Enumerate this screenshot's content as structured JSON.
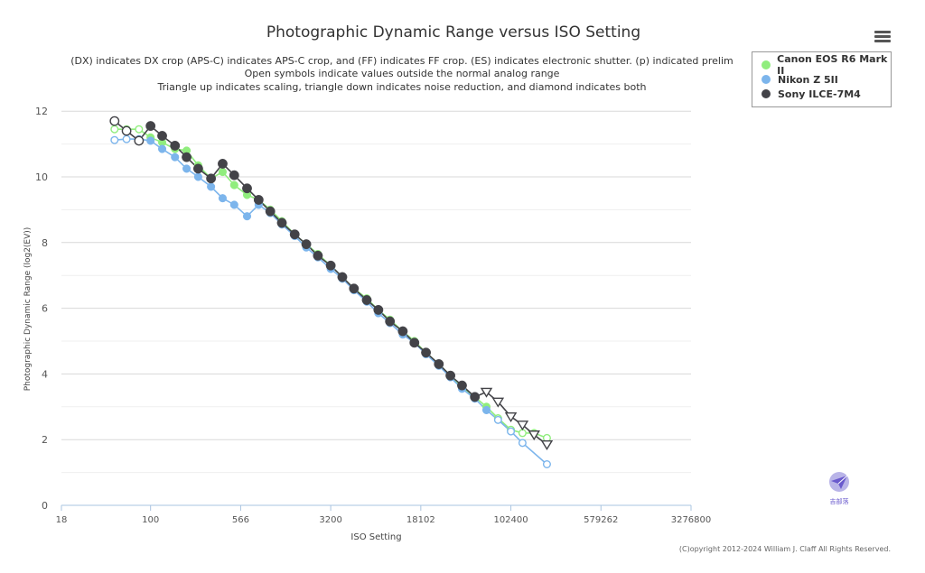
{
  "chart_data": {
    "type": "line",
    "title": "Photographic Dynamic Range versus ISO Setting",
    "subtitle": [
      "(DX) indicates DX crop (APS-C) indicates APS-C crop, and (FF) indicates FF crop. (ES) indicates electronic shutter. (p) indicated prelim",
      "Open symbols indicate values outside the normal analog range",
      "Triangle up indicates scaling, triangle down indicates noise reduction, and diamond indicates both"
    ],
    "xlabel": "ISO Setting",
    "ylabel": "Photographic Dynamic Range (log2(EV))",
    "x_scale": "log2",
    "xlim": [
      18,
      3276800
    ],
    "ylim": [
      0,
      12.5
    ],
    "x_ticks": [
      18,
      100,
      566,
      3200,
      18102,
      102400,
      579262,
      3276800
    ],
    "x_tick_labels": [
      "18",
      "100",
      "566",
      "3200",
      "18102",
      "102400",
      "579262",
      "3276800"
    ],
    "y_ticks": [
      0,
      2,
      4,
      6,
      8,
      10,
      12
    ],
    "y_tick_labels": [
      "0",
      "2",
      "4",
      "6",
      "8",
      "10",
      "12"
    ],
    "grid": "horizontal",
    "legend_position": "top-right",
    "series": [
      {
        "name": "Canon EOS R6 Mark II",
        "color": "#90ed7d",
        "points": [
          [
            50,
            11.45,
            "open"
          ],
          [
            63,
            11.45,
            "open"
          ],
          [
            80,
            11.45,
            "open"
          ],
          [
            100,
            11.2,
            "filled"
          ],
          [
            125,
            11.05,
            "filled"
          ],
          [
            160,
            10.85,
            "filled"
          ],
          [
            200,
            10.8,
            "filled"
          ],
          [
            250,
            10.35,
            "filled"
          ],
          [
            320,
            9.95,
            "filled"
          ],
          [
            400,
            10.15,
            "filled"
          ],
          [
            500,
            9.75,
            "filled"
          ],
          [
            640,
            9.45,
            "filled"
          ],
          [
            800,
            9.3,
            "filled"
          ],
          [
            1000,
            9.0,
            "filled"
          ],
          [
            1250,
            8.65,
            "filled"
          ],
          [
            1600,
            8.25,
            "filled"
          ],
          [
            2000,
            7.95,
            "filled"
          ],
          [
            2500,
            7.65,
            "filled"
          ],
          [
            3200,
            7.3,
            "filled"
          ],
          [
            4000,
            6.95,
            "filled"
          ],
          [
            5000,
            6.6,
            "filled"
          ],
          [
            6400,
            6.3,
            "filled"
          ],
          [
            8000,
            5.95,
            "filled"
          ],
          [
            10000,
            5.65,
            "filled"
          ],
          [
            12800,
            5.3,
            "filled"
          ],
          [
            16000,
            5.0,
            "filled"
          ],
          [
            20000,
            4.65,
            "filled"
          ],
          [
            25600,
            4.3,
            "filled"
          ],
          [
            32000,
            3.95,
            "filled"
          ],
          [
            40000,
            3.6,
            "filled"
          ],
          [
            51200,
            3.3,
            "filled"
          ],
          [
            64000,
            3.0,
            "filled"
          ],
          [
            80000,
            2.65,
            "open"
          ],
          [
            102400,
            2.3,
            "open"
          ],
          [
            128000,
            2.2,
            "open"
          ],
          [
            160000,
            2.2,
            "open"
          ],
          [
            204800,
            2.05,
            "open"
          ]
        ]
      },
      {
        "name": "Nikon Z 5II",
        "color": "#7cb5ec",
        "points": [
          [
            50,
            11.12,
            "open"
          ],
          [
            63,
            11.15,
            "open"
          ],
          [
            80,
            11.15,
            "open"
          ],
          [
            100,
            11.1,
            "filled"
          ],
          [
            125,
            10.85,
            "filled"
          ],
          [
            160,
            10.6,
            "filled"
          ],
          [
            200,
            10.25,
            "filled"
          ],
          [
            250,
            10.0,
            "filled"
          ],
          [
            320,
            9.7,
            "filled"
          ],
          [
            400,
            9.35,
            "filled"
          ],
          [
            500,
            9.15,
            "filled"
          ],
          [
            640,
            8.8,
            "filled"
          ],
          [
            800,
            9.15,
            "filled"
          ],
          [
            1000,
            8.9,
            "filled"
          ],
          [
            1250,
            8.55,
            "filled"
          ],
          [
            1600,
            8.2,
            "filled"
          ],
          [
            2000,
            7.85,
            "filled"
          ],
          [
            2500,
            7.55,
            "filled"
          ],
          [
            3200,
            7.2,
            "filled"
          ],
          [
            4000,
            6.9,
            "filled"
          ],
          [
            5000,
            6.55,
            "filled"
          ],
          [
            6400,
            6.2,
            "filled"
          ],
          [
            8000,
            5.85,
            "filled"
          ],
          [
            10000,
            5.55,
            "filled"
          ],
          [
            12800,
            5.2,
            "filled"
          ],
          [
            16000,
            4.95,
            "filled"
          ],
          [
            20000,
            4.6,
            "filled"
          ],
          [
            25600,
            4.25,
            "filled"
          ],
          [
            32000,
            3.9,
            "filled"
          ],
          [
            40000,
            3.55,
            "filled"
          ],
          [
            51200,
            3.25,
            "filled"
          ],
          [
            64000,
            2.9,
            "filled"
          ],
          [
            80000,
            2.6,
            "open"
          ],
          [
            102400,
            2.25,
            "open"
          ],
          [
            128000,
            1.9,
            "open"
          ],
          [
            204800,
            1.25,
            "open"
          ]
        ]
      },
      {
        "name": "Sony ILCE-7M4",
        "color": "#434348",
        "points": [
          [
            50,
            11.7,
            "open"
          ],
          [
            63,
            11.4,
            "open"
          ],
          [
            80,
            11.1,
            "open"
          ],
          [
            100,
            11.55,
            "filled"
          ],
          [
            125,
            11.25,
            "filled"
          ],
          [
            160,
            10.95,
            "filled"
          ],
          [
            200,
            10.6,
            "filled"
          ],
          [
            250,
            10.25,
            "filled"
          ],
          [
            320,
            9.95,
            "filled"
          ],
          [
            400,
            10.4,
            "filled"
          ],
          [
            500,
            10.05,
            "filled"
          ],
          [
            640,
            9.65,
            "filled"
          ],
          [
            800,
            9.3,
            "filled"
          ],
          [
            1000,
            8.95,
            "filled"
          ],
          [
            1250,
            8.6,
            "filled"
          ],
          [
            1600,
            8.25,
            "filled"
          ],
          [
            2000,
            7.95,
            "filled"
          ],
          [
            2500,
            7.6,
            "filled"
          ],
          [
            3200,
            7.3,
            "filled"
          ],
          [
            4000,
            6.95,
            "filled"
          ],
          [
            5000,
            6.6,
            "filled"
          ],
          [
            6400,
            6.25,
            "filled"
          ],
          [
            8000,
            5.95,
            "filled"
          ],
          [
            10000,
            5.6,
            "filled"
          ],
          [
            12800,
            5.3,
            "filled"
          ],
          [
            16000,
            4.95,
            "filled"
          ],
          [
            20000,
            4.65,
            "filled"
          ],
          [
            25600,
            4.3,
            "filled"
          ],
          [
            32000,
            3.95,
            "filled"
          ],
          [
            40000,
            3.65,
            "filled"
          ],
          [
            51200,
            3.3,
            "filled"
          ],
          [
            64000,
            3.45,
            "tri-down"
          ],
          [
            80000,
            3.15,
            "tri-down"
          ],
          [
            102400,
            2.7,
            "tri-down"
          ],
          [
            128000,
            2.45,
            "tri-down"
          ],
          [
            160000,
            2.15,
            "tri-down"
          ],
          [
            204800,
            1.85,
            "tri-down"
          ]
        ]
      }
    ]
  },
  "menu_icon": "hamburger-menu-icon",
  "credit": "(C)opyright 2012-2024 William J. Claff All Rights Reserved.",
  "watermark": {
    "icon": "paper-plane-logo",
    "text": "吉部落"
  }
}
